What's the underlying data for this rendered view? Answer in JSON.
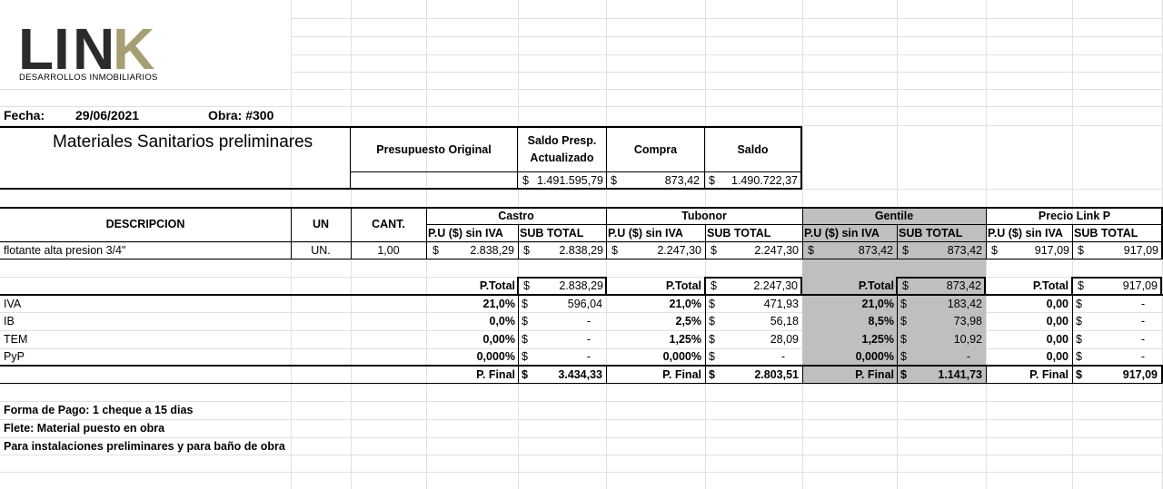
{
  "colors": {
    "logo_dark": "#2b2b2b",
    "logo_gold": "#a69f74",
    "shade": "#bfbfbf",
    "gridline": "#e0e0e0"
  },
  "logo": {
    "l": "L",
    "i": "I",
    "n": "N",
    "k": "K",
    "subtitle": "DESARROLLOS INMOBILIARIOS"
  },
  "header": {
    "fecha_label": "Fecha:",
    "fecha": "29/06/2021",
    "obra": "Obra: #300"
  },
  "title": "Materiales Sanitarios preliminares",
  "summary": {
    "presupuesto_original": "Presupuesto Original",
    "saldo_presp_1": "Saldo Presp.",
    "saldo_presp_2": "Actualizado",
    "compra": "Compra",
    "saldo": "Saldo",
    "cur": "$",
    "saldo_presp_value": "1.491.595,79",
    "compra_value": "873,42",
    "saldo_value": "1.490.722,37"
  },
  "columns": {
    "descripcion": "DESCRIPCION",
    "un": "UN",
    "cant": "CANT.",
    "pu": "P.U ($) sin IVA",
    "subtotal": "SUB TOTAL"
  },
  "suppliers": [
    "Castro",
    "Tubonor",
    "Gentile",
    "Precio Link P"
  ],
  "item": {
    "desc": "flotante alta presion 3/4\"",
    "un": "UN.",
    "cant": "1,00"
  },
  "prices": [
    {
      "pu": "2.838,29",
      "sub": "2.838,29"
    },
    {
      "pu": "2.247,30",
      "sub": "2.247,30"
    },
    {
      "pu": "873,42",
      "sub": "873,42"
    },
    {
      "pu": "917,09",
      "sub": "917,09"
    }
  ],
  "labels": {
    "ptotal": "P.Total",
    "pfinal": "P. Final",
    "cur": "$",
    "dash": "-"
  },
  "taxes": [
    "IVA",
    "IB",
    "TEM",
    "PyP"
  ],
  "ptotal": [
    "2.838,29",
    "2.247,30",
    "873,42",
    "917,09"
  ],
  "rates": [
    [
      "21,0%",
      "0,0%",
      "0,00%",
      "0,000%"
    ],
    [
      "21,0%",
      "2,5%",
      "1,25%",
      "0,000%"
    ],
    [
      "21,0%",
      "8,5%",
      "1,25%",
      "0,000%"
    ],
    [
      "0,00",
      "0,00",
      "0,00",
      "0,00"
    ]
  ],
  "amounts": [
    [
      "596,04",
      "-",
      "-",
      "-"
    ],
    [
      "471,93",
      "56,18",
      "28,09",
      "-"
    ],
    [
      "183,42",
      "73,98",
      "10,92",
      "-"
    ],
    [
      "-",
      "-",
      "-",
      "-"
    ]
  ],
  "pfinal": [
    "3.434,33",
    "2.803,51",
    "1.141,73",
    "917,09"
  ],
  "notes": [
    "Forma de Pago: 1 cheque a 15 dias",
    "Flete: Material puesto en obra",
    "Para instalaciones preliminares y para baño de obra"
  ]
}
